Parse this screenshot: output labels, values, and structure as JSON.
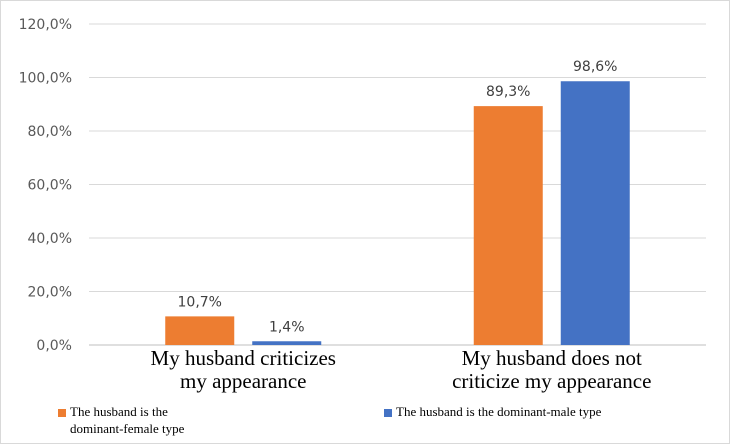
{
  "chart_data": {
    "type": "bar",
    "categories": [
      "My husband criticizes my appearance",
      "My husband does not criticize my appearance"
    ],
    "category_lines": [
      [
        "My husband criticizes",
        "my appearance"
      ],
      [
        "My husband does not",
        "criticize my appearance"
      ]
    ],
    "series": [
      {
        "name": "The husband is the dominant-female type",
        "values": [
          10.7,
          89.3
        ],
        "labels": [
          "10,7%",
          "89,3%"
        ],
        "color": "#ED7D31"
      },
      {
        "name": "The husband is the dominant-male type",
        "values": [
          1.4,
          98.6
        ],
        "labels": [
          "1,4%",
          "98,6%"
        ],
        "color": "#4472C4"
      }
    ],
    "ylim": [
      0,
      120
    ],
    "yticks": [
      "0,0%",
      "20,0%",
      "40,0%",
      "60,0%",
      "80,0%",
      "100,0%",
      "120,0%"
    ],
    "grid": true,
    "legend_position": "bottom",
    "title": "",
    "xlabel": "",
    "ylabel": ""
  },
  "legend": {
    "item1_line1": "The husband is the",
    "item1_line2": "dominant-female type",
    "item2": "The husband is the dominant-male type"
  }
}
